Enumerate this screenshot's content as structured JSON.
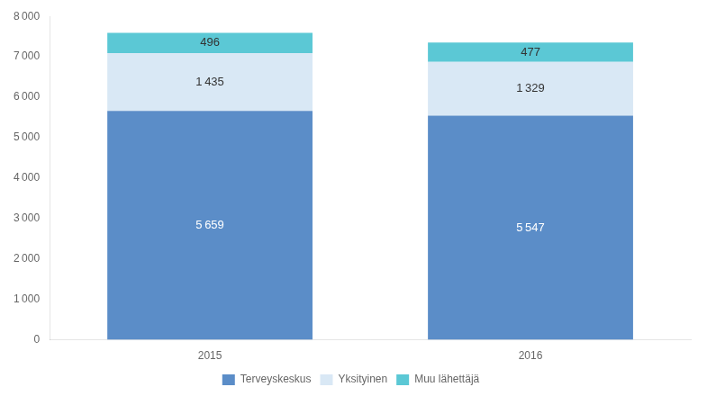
{
  "chart_data": {
    "type": "bar",
    "stacked": true,
    "categories": [
      "2015",
      "2016"
    ],
    "series": [
      {
        "name": "Terveyskeskus",
        "color": "#5B8DC8",
        "values": [
          5659,
          5547
        ],
        "value_labels": [
          "5 659",
          "5 547"
        ]
      },
      {
        "name": "Yksityinen",
        "color": "#D9E8F5",
        "values": [
          1435,
          1329
        ],
        "value_labels": [
          "1 435",
          "1 329"
        ]
      },
      {
        "name": "Muu lähettäjä",
        "color": "#5BC8D5",
        "values": [
          496,
          477
        ],
        "value_labels": [
          "496",
          "477"
        ]
      }
    ],
    "ylim": [
      0,
      8000
    ],
    "yticks": [
      0,
      {
        "value": 1000,
        "label": "1 000"
      },
      {
        "value": 2000,
        "label": "2 000"
      },
      {
        "value": 3000,
        "label": "3 000"
      },
      {
        "value": 4000,
        "label": "4 000"
      },
      {
        "value": 5000,
        "label": "5 000"
      },
      {
        "value": 6000,
        "label": "6 000"
      },
      {
        "value": 7000,
        "label": "7 000"
      },
      {
        "value": 8000,
        "label": "8 000"
      }
    ],
    "grid": false,
    "legend": "bottom",
    "data_labels": true
  }
}
